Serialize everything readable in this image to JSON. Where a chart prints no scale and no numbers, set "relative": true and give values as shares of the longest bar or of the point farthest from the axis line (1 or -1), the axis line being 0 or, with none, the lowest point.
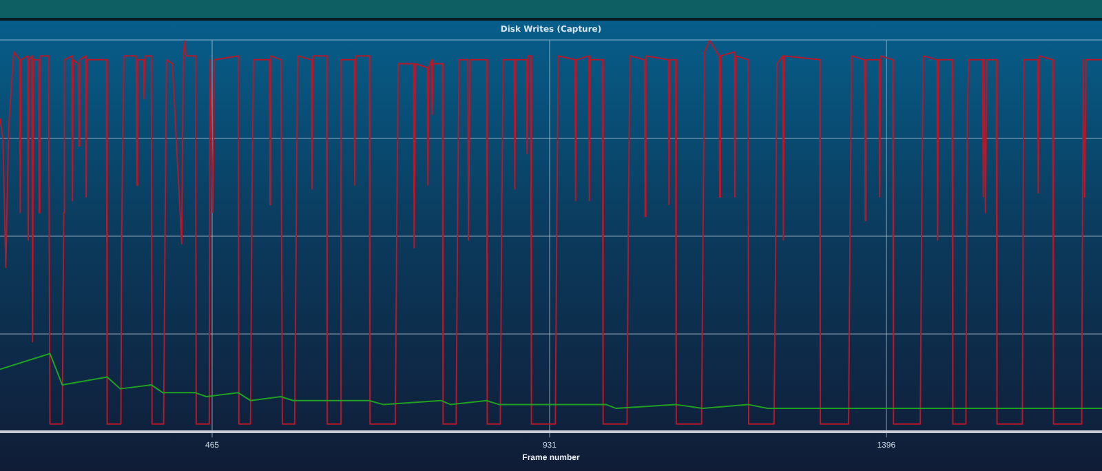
{
  "chart_data": {
    "type": "line",
    "title": "Disk Writes (Capture)",
    "xlabel": "Frame number",
    "relative": true,
    "xlim": [
      172,
      1694
    ],
    "xticks": [
      465,
      931,
      1396
    ],
    "grid": true,
    "legend": false,
    "marker": "none",
    "line_style": "solid",
    "series": [
      {
        "color": "#b3192b",
        "x": [
          172,
          176,
          180,
          184,
          191,
          199,
          200,
          201,
          210,
          211,
          212,
          216,
          217,
          218,
          225,
          226,
          227,
          239,
          241,
          258,
          260,
          261,
          271,
          272,
          273,
          280,
          281,
          282,
          290,
          291,
          292,
          319,
          320,
          339,
          340,
          343,
          360,
          361,
          362,
          370,
          371,
          372,
          381,
          382,
          398,
          400,
          402,
          410,
          423,
          425,
          427,
          429,
          442,
          443,
          461,
          462,
          466,
          468,
          501,
          502,
          518,
          520,
          522,
          544,
          545,
          546,
          560,
          562,
          579,
          581,
          583,
          602,
          603,
          604,
          623,
          624,
          642,
          643,
          661,
          662,
          663,
          682,
          683,
          718,
          720,
          722,
          743,
          744,
          746,
          762,
          763,
          764,
          768,
          769,
          770,
          783,
          784,
          802,
          804,
          806,
          818,
          819,
          821,
          844,
          845,
          863,
          865,
          867,
          882,
          883,
          884,
          899,
          900,
          901,
          905,
          906,
          939,
          941,
          943,
          966,
          967,
          968,
          985,
          986,
          987,
          1004,
          1005,
          1038,
          1040,
          1042,
          1062,
          1063,
          1064,
          1095,
          1096,
          1097,
          1105,
          1106,
          1141,
          1143,
          1145,
          1152,
          1165,
          1166,
          1167,
          1186,
          1187,
          1188,
          1205,
          1206,
          1241,
          1243,
          1245,
          1253,
          1254,
          1255,
          1304,
          1305,
          1344,
          1346,
          1348,
          1366,
          1367,
          1368,
          1386,
          1387,
          1388,
          1405,
          1406,
          1443,
          1445,
          1447,
          1466,
          1467,
          1468,
          1487,
          1488,
          1506,
          1508,
          1510,
          1529,
          1530,
          1531,
          1533,
          1535,
          1548,
          1549,
          1584,
          1586,
          1605,
          1606,
          1607,
          1626,
          1627,
          1666,
          1668,
          1670,
          1672,
          1694
        ],
        "values": [
          0.8,
          0.75,
          0.42,
          0.78,
          0.97,
          0.95,
          0.56,
          0.95,
          0.96,
          0.49,
          0.95,
          0.96,
          0.23,
          0.95,
          0.95,
          0.56,
          0.96,
          0.96,
          0.02,
          0.02,
          0.56,
          0.95,
          0.96,
          0.59,
          0.95,
          0.94,
          0.73,
          0.95,
          0.96,
          0.6,
          0.95,
          0.95,
          0.02,
          0.02,
          0.49,
          0.96,
          0.96,
          0.63,
          0.95,
          0.95,
          0.85,
          0.96,
          0.96,
          0.02,
          0.02,
          0.52,
          0.95,
          0.94,
          0.48,
          0.95,
          1,
          0.96,
          0.96,
          0.02,
          0.02,
          0.95,
          0.56,
          0.95,
          0.96,
          0.02,
          0.02,
          0.6,
          0.95,
          0.95,
          0.58,
          0.96,
          0.95,
          0.02,
          0.02,
          0.49,
          0.96,
          0.95,
          0.62,
          0.96,
          0.96,
          0.02,
          0.02,
          0.95,
          0.95,
          0.63,
          0.96,
          0.96,
          0.02,
          0.02,
          0.52,
          0.94,
          0.94,
          0.47,
          0.94,
          0.93,
          0.63,
          0.93,
          0.95,
          0.81,
          0.94,
          0.94,
          0.02,
          0.02,
          0.55,
          0.95,
          0.95,
          0.49,
          0.95,
          0.95,
          0.02,
          0.02,
          0.56,
          0.95,
          0.95,
          0.62,
          0.95,
          0.95,
          0.71,
          0.96,
          0.96,
          0.02,
          0.02,
          0.53,
          0.96,
          0.95,
          0.59,
          0.95,
          0.96,
          0.59,
          0.95,
          0.95,
          0.02,
          0.02,
          0.57,
          0.96,
          0.95,
          0.55,
          0.96,
          0.95,
          0.58,
          0.95,
          0.95,
          0.02,
          0.02,
          0.51,
          0.97,
          1,
          0.96,
          0.6,
          0.96,
          0.97,
          0.6,
          0.96,
          0.95,
          0.02,
          0.02,
          0.39,
          0.94,
          0.96,
          0.49,
          0.96,
          0.95,
          0.02,
          0.02,
          0.5,
          0.96,
          0.95,
          0.54,
          0.95,
          0.95,
          0.6,
          0.96,
          0.95,
          0.02,
          0.02,
          0.54,
          0.96,
          0.95,
          0.49,
          0.95,
          0.95,
          0.02,
          0.02,
          0.82,
          0.95,
          0.95,
          0.6,
          0.95,
          0.56,
          0.95,
          0.95,
          0.02,
          0.02,
          0.95,
          0.95,
          0.61,
          0.96,
          0.95,
          0.02,
          0.02,
          0.95,
          0.6,
          0.95,
          0.95
        ]
      },
      {
        "color": "#22a022",
        "x": [
          172,
          241,
          258,
          320,
          338,
          381,
          397,
          442,
          457,
          501,
          518,
          560,
          577,
          623,
          638,
          682,
          701,
          781,
          794,
          844,
          861,
          905,
          1009,
          1023,
          1105,
          1143,
          1205,
          1232,
          1308,
          1339,
          1409,
          1441,
          1489,
          1508,
          1546,
          1567,
          1694
        ],
        "values": [
          0.16,
          0.2,
          0.12,
          0.14,
          0.11,
          0.12,
          0.1,
          0.1,
          0.09,
          0.1,
          0.08,
          0.09,
          0.08,
          0.08,
          0.08,
          0.08,
          0.07,
          0.08,
          0.07,
          0.08,
          0.07,
          0.07,
          0.07,
          0.06,
          0.07,
          0.06,
          0.07,
          0.06,
          0.06,
          0.06,
          0.06,
          0.06,
          0.06,
          0.06,
          0.06,
          0.06,
          0.06
        ]
      }
    ]
  }
}
